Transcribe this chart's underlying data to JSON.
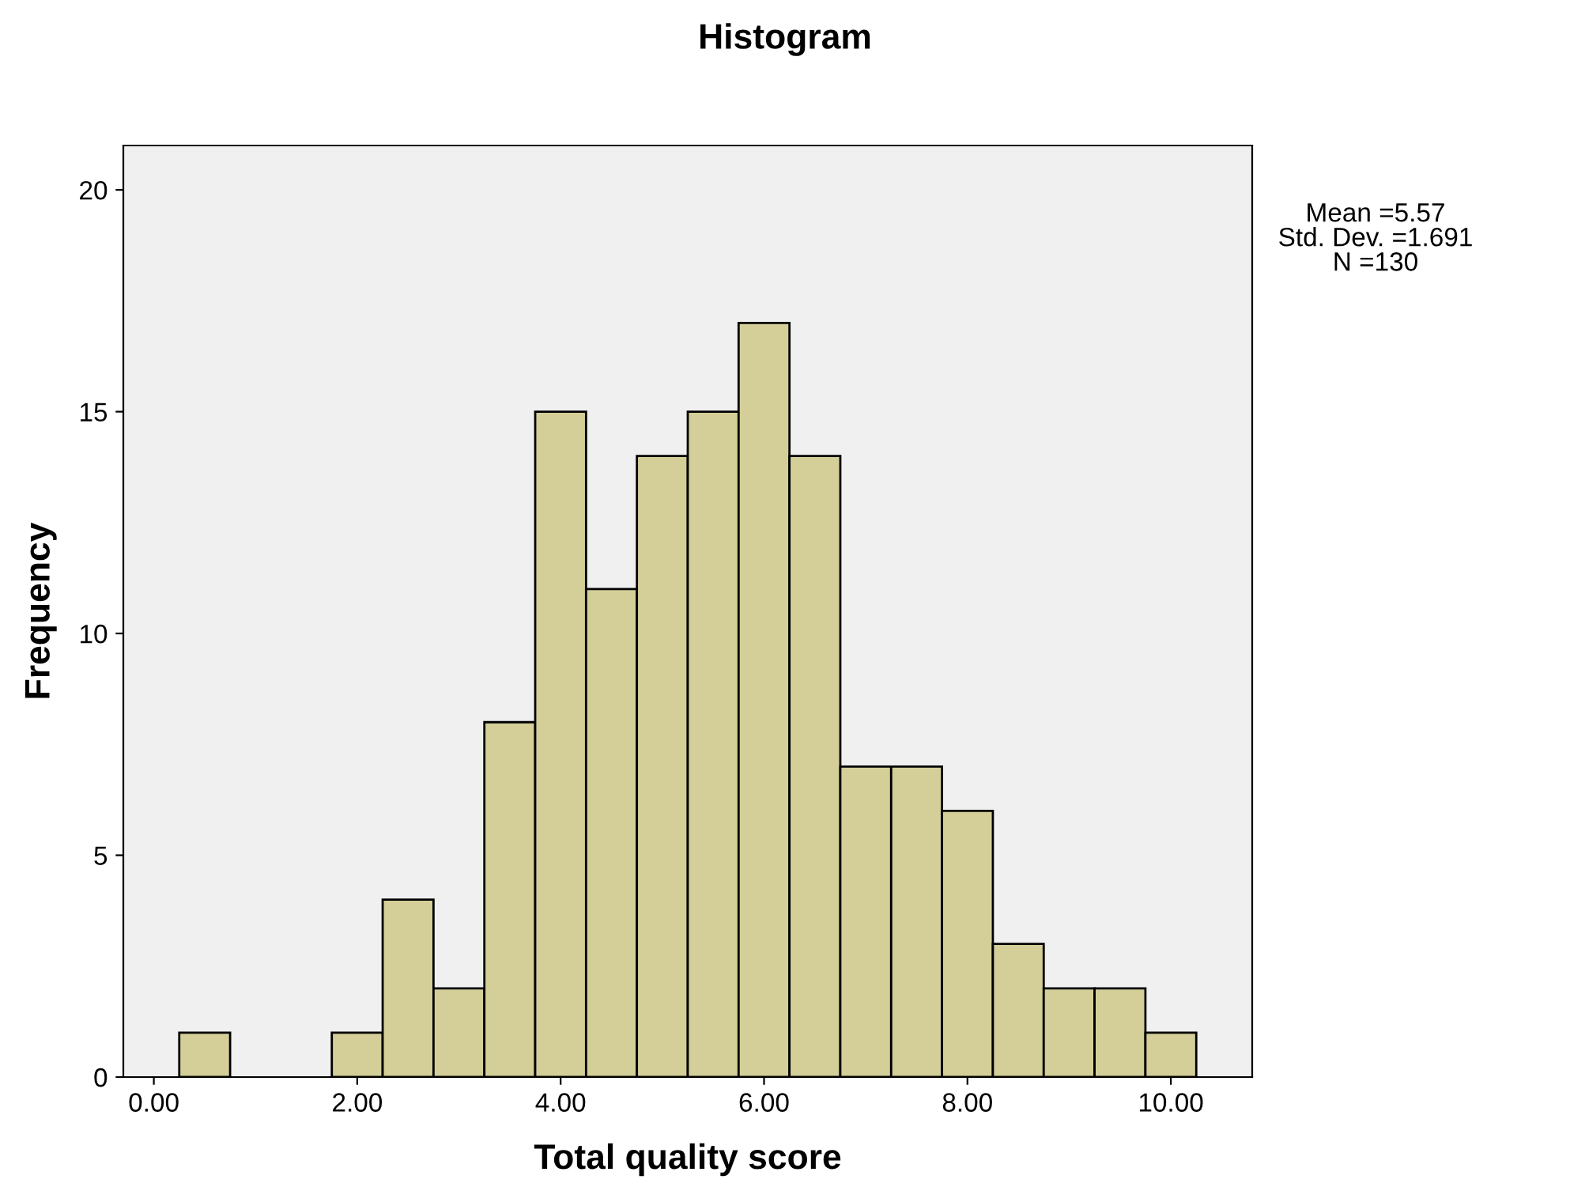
{
  "chart_data": {
    "type": "histogram",
    "title": "Histogram",
    "xlabel": "Total quality score",
    "ylabel": "Frequency",
    "bins": [
      0.25,
      0.75,
      1.25,
      1.75,
      2.25,
      2.75,
      3.25,
      3.75,
      4.25,
      4.75,
      5.25,
      5.75,
      6.25,
      6.75,
      7.25,
      7.75,
      8.25,
      8.75,
      9.25,
      9.75,
      10.25
    ],
    "values": [
      1,
      0,
      0,
      1,
      4,
      2,
      8,
      15,
      11,
      14,
      15,
      17,
      14,
      7,
      7,
      6,
      3,
      2,
      2,
      1
    ],
    "color": "#d4cf98",
    "xlim": [
      -0.3,
      10.8
    ],
    "xticks": [
      {
        "value": 0,
        "label": "0.00"
      },
      {
        "value": 2,
        "label": "2.00"
      },
      {
        "value": 4,
        "label": "4.00"
      },
      {
        "value": 6,
        "label": "6.00"
      },
      {
        "value": 8,
        "label": "8.00"
      },
      {
        "value": 10,
        "label": "10.00"
      }
    ],
    "ylim": [
      0,
      21
    ],
    "yticks": [
      0,
      5,
      10,
      15,
      20
    ],
    "grid": false,
    "annotations": [
      "Mean =5.57\nStd. Dev. =1.691\nN =130"
    ]
  }
}
